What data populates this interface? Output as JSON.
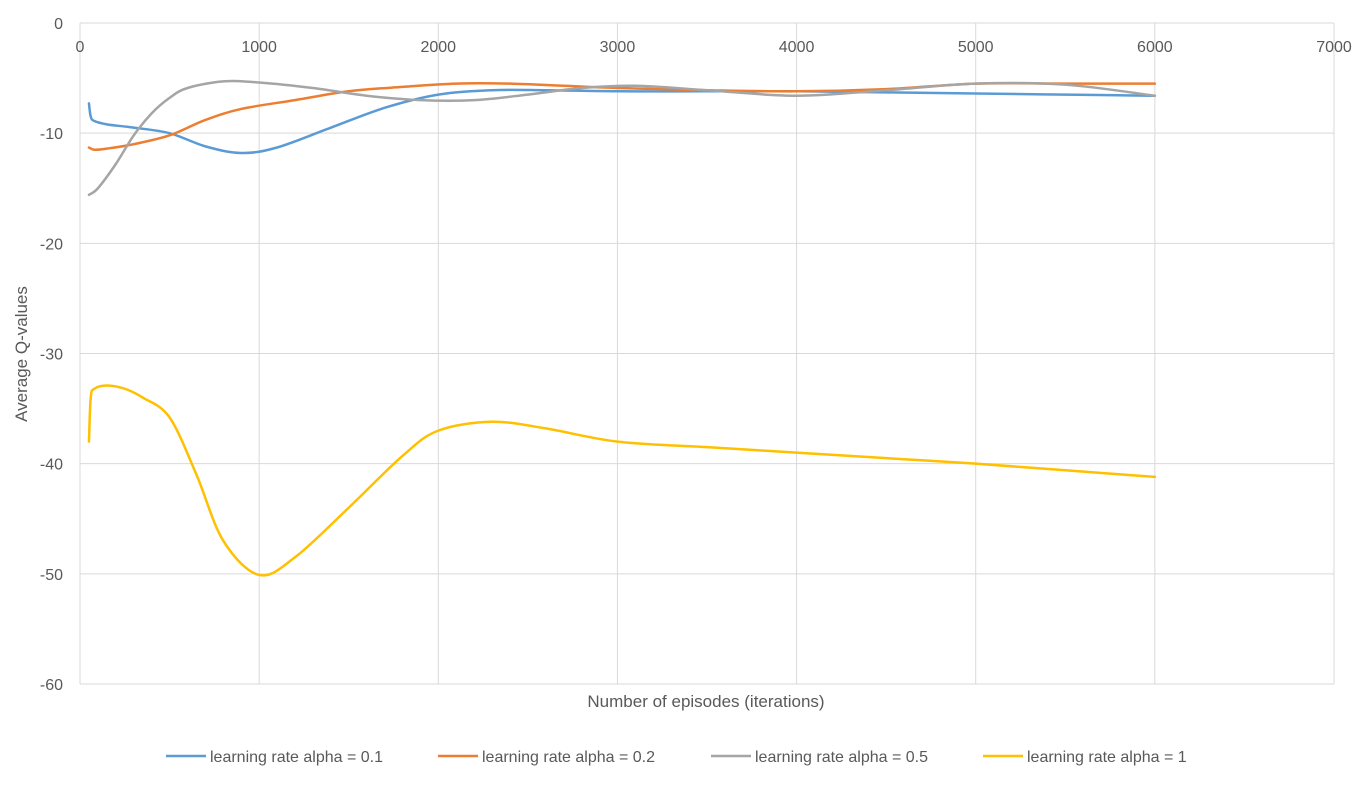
{
  "chart_data": {
    "type": "line",
    "title": "",
    "xlabel": "Number of episodes (iterations)",
    "ylabel": "Average Q-values",
    "xlim": [
      0,
      7000
    ],
    "ylim": [
      -60,
      0
    ],
    "x_ticks": [
      0,
      1000,
      2000,
      3000,
      4000,
      5000,
      6000,
      7000
    ],
    "y_ticks": [
      0,
      -10,
      -20,
      -30,
      -40,
      -50,
      -60
    ],
    "x_tick_labels": [
      "0",
      "1000",
      "2000",
      "3000",
      "4000",
      "5000",
      "6000",
      "7000"
    ],
    "y_tick_labels": [
      "0",
      "-10",
      "-20",
      "-30",
      "-40",
      "-50",
      "-60"
    ],
    "x_axis_position": "top",
    "grid": true,
    "legend_position": "bottom",
    "series": [
      {
        "name": "learning rate alpha = 0.1",
        "color": "#5b9bd5",
        "x": [
          50,
          60,
          80,
          150,
          300,
          500,
          700,
          900,
          1100,
          1400,
          1700,
          2000,
          2300,
          2600,
          3000,
          3500,
          4000,
          4500,
          5000,
          5500,
          6000
        ],
        "y": [
          -7.3,
          -8.5,
          -8.9,
          -9.2,
          -9.5,
          -10.0,
          -11.2,
          -11.8,
          -11.3,
          -9.5,
          -7.7,
          -6.5,
          -6.1,
          -6.1,
          -6.2,
          -6.2,
          -6.2,
          -6.3,
          -6.4,
          -6.5,
          -6.6
        ]
      },
      {
        "name": "learning rate alpha = 0.2",
        "color": "#ed7d31",
        "x": [
          50,
          80,
          150,
          300,
          500,
          700,
          900,
          1200,
          1500,
          1800,
          2100,
          2400,
          2700,
          3000,
          3500,
          4000,
          4500,
          5000,
          5500,
          6000
        ],
        "y": [
          -11.3,
          -11.5,
          -11.4,
          -11.0,
          -10.2,
          -8.8,
          -7.8,
          -7.0,
          -6.2,
          -5.8,
          -5.5,
          -5.5,
          -5.7,
          -5.9,
          -6.1,
          -6.2,
          -6.0,
          -5.5,
          -5.5,
          -5.5
        ]
      },
      {
        "name": "learning rate alpha = 0.5",
        "color": "#a5a5a5",
        "x": [
          50,
          100,
          200,
          300,
          400,
          500,
          600,
          800,
          1000,
          1300,
          1600,
          1900,
          2200,
          2500,
          2800,
          3100,
          3500,
          4000,
          4500,
          5000,
          5500,
          6000
        ],
        "y": [
          -15.6,
          -15.0,
          -12.8,
          -10.2,
          -8.2,
          -6.8,
          -5.9,
          -5.3,
          -5.4,
          -5.9,
          -6.6,
          -7.0,
          -7.0,
          -6.5,
          -5.9,
          -5.7,
          -6.1,
          -6.6,
          -6.1,
          -5.5,
          -5.6,
          -6.6
        ]
      },
      {
        "name": "learning rate alpha = 1",
        "color": "#ffc000",
        "x": [
          50,
          60,
          80,
          150,
          250,
          350,
          500,
          650,
          800,
          1000,
          1200,
          1500,
          1800,
          2000,
          2300,
          2600,
          3000,
          3500,
          4000,
          4500,
          5000,
          5500,
          6000
        ],
        "y": [
          -38.0,
          -34.0,
          -33.2,
          -32.9,
          -33.2,
          -34.0,
          -35.8,
          -41.0,
          -47.0,
          -50.1,
          -48.5,
          -44.0,
          -39.3,
          -37.0,
          -36.2,
          -36.8,
          -38.0,
          -38.5,
          -39.0,
          -39.5,
          -40.0,
          -40.6,
          -41.2
        ]
      }
    ]
  }
}
